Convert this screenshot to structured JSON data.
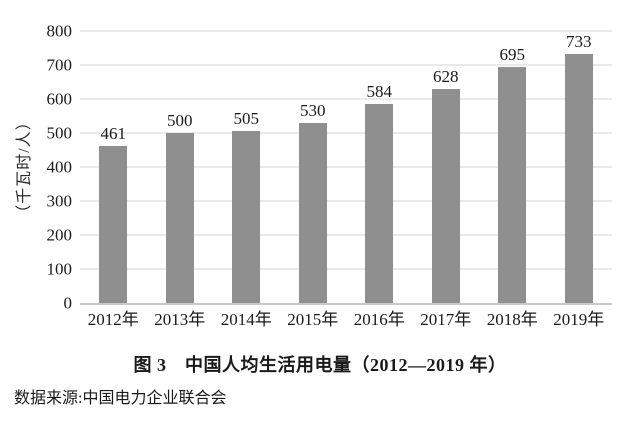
{
  "chart_data": {
    "type": "bar",
    "title": "图 3　中国人均生活用电量（2012—2019 年）",
    "ylabel": "（千瓦时/人）",
    "xlabel": "",
    "categories": [
      "2012年",
      "2013年",
      "2014年",
      "2015年",
      "2016年",
      "2017年",
      "2018年",
      "2019年"
    ],
    "values": [
      461,
      500,
      505,
      530,
      584,
      628,
      695,
      733
    ],
    "ylim": [
      0,
      800
    ],
    "yticks": [
      0,
      100,
      200,
      300,
      400,
      500,
      600,
      700,
      800
    ],
    "grid": true,
    "legend_position": "none",
    "bar_color": "#8f8f8f",
    "source_note": "数据来源:中国电力企业联合会"
  },
  "figure": {
    "caption": "图 3　中国人均生活用电量（2012—2019 年）",
    "y_axis_title": "（千瓦时/人）",
    "source_note": "数据来源:中国电力企业联合会"
  },
  "colors": {
    "bar": "#8f8f8f",
    "gridline": "#e9e9e9",
    "baseline": "#c9c9c9",
    "text": "#1a1a1a",
    "background": "#ffffff"
  }
}
